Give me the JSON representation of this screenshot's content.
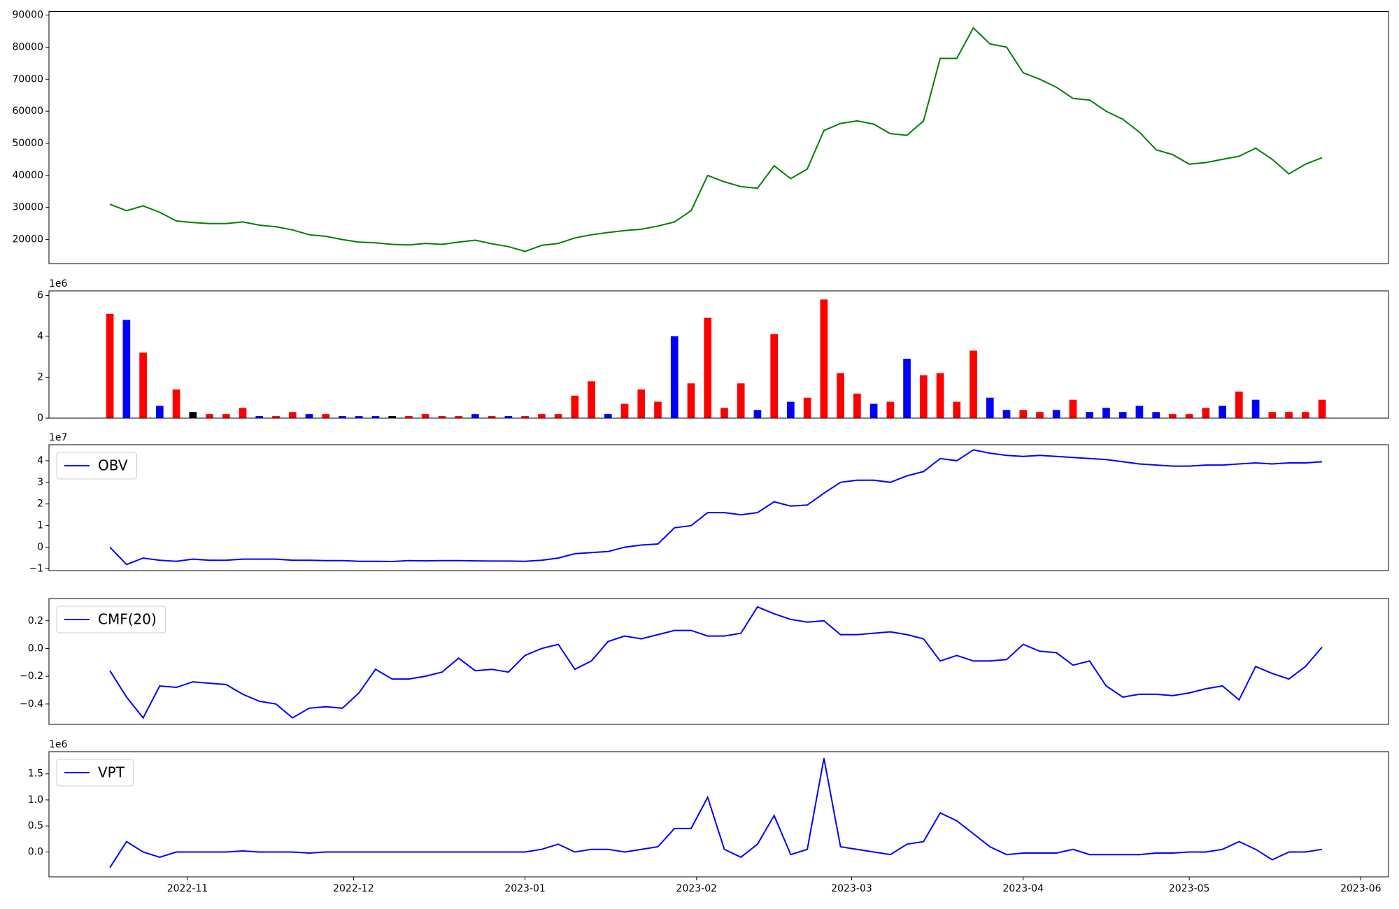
{
  "chart_data": [
    {
      "type": "line",
      "series": [
        {
          "color": "green",
          "values": [
            31000,
            29000,
            30500,
            28500,
            25800,
            25300,
            25000,
            25000,
            25500,
            24500,
            24000,
            23000,
            21500,
            21000,
            20000,
            19200,
            19000,
            18500,
            18300,
            18800,
            18500,
            19200,
            19800,
            18700,
            17800,
            16300,
            18200,
            18800,
            20500,
            21500,
            22200,
            22800,
            23200,
            24200,
            25500,
            29000,
            40000,
            38000,
            36500,
            36000,
            43000,
            39000,
            42000,
            54000,
            56200,
            57000,
            56000,
            53000,
            52500,
            57000,
            76500,
            76500,
            86000,
            81000,
            80000,
            72000,
            70000,
            67500,
            64000,
            63500,
            60000,
            57500,
            53500,
            48000,
            46500,
            43500,
            44000,
            45000,
            46000,
            48500,
            45000,
            40500,
            43500,
            45500
          ]
        }
      ],
      "ylim": [
        12500,
        91100
      ],
      "yticks": [
        20000,
        30000,
        40000,
        50000,
        60000,
        70000,
        80000,
        90000
      ]
    },
    {
      "type": "bar",
      "y_offset_label": "1e6",
      "values": [
        5.1,
        4.8,
        3.2,
        0.6,
        1.4,
        0.3,
        0.2,
        0.2,
        0.5,
        0.1,
        0.1,
        0.3,
        0.2,
        0.2,
        0.1,
        0.1,
        0.1,
        0.1,
        0.1,
        0.2,
        0.1,
        0.1,
        0.2,
        0.1,
        0.1,
        0.1,
        0.2,
        0.2,
        1.1,
        1.8,
        0.2,
        0.7,
        1.4,
        0.8,
        4.0,
        1.7,
        4.9,
        0.5,
        1.7,
        0.4,
        4.1,
        0.8,
        1.0,
        5.8,
        2.2,
        1.2,
        0.7,
        0.8,
        2.9,
        2.1,
        2.2,
        0.8,
        3.3,
        1.0,
        0.4,
        0.4,
        0.3,
        0.4,
        0.9,
        0.3,
        0.5,
        0.3,
        0.6,
        0.3,
        0.2,
        0.2,
        0.5,
        0.6,
        1.3,
        0.9,
        0.3,
        0.3,
        0.3,
        0.9
      ],
      "colors": [
        "red",
        "blue",
        "red",
        "blue",
        "red",
        "black",
        "red",
        "red",
        "red",
        "blue",
        "red",
        "red",
        "blue",
        "red",
        "blue",
        "blue",
        "blue",
        "black",
        "red",
        "red",
        "red",
        "red",
        "blue",
        "red",
        "blue",
        "red",
        "red",
        "red",
        "red",
        "red",
        "blue",
        "red",
        "red",
        "red",
        "blue",
        "red",
        "red",
        "red",
        "red",
        "blue",
        "red",
        "blue",
        "red",
        "red",
        "red",
        "red",
        "blue",
        "red",
        "blue",
        "red",
        "red",
        "red",
        "red",
        "blue",
        "blue",
        "red",
        "red",
        "blue",
        "red",
        "blue",
        "blue",
        "blue",
        "blue",
        "blue",
        "red",
        "red",
        "red",
        "blue",
        "red",
        "blue",
        "red",
        "red",
        "red",
        "red"
      ],
      "ylim": [
        0,
        6.22
      ],
      "yticks": [
        0,
        2,
        4,
        6
      ]
    },
    {
      "type": "line",
      "y_offset_label": "1e7",
      "legend": "upper left",
      "series": [
        {
          "name": "OBV",
          "color": "blue",
          "values": [
            0,
            -0.8,
            -0.5,
            -0.6,
            -0.65,
            -0.55,
            -0.6,
            -0.6,
            -0.55,
            -0.55,
            -0.55,
            -0.6,
            -0.6,
            -0.62,
            -0.62,
            -0.65,
            -0.65,
            -0.66,
            -0.62,
            -0.63,
            -0.62,
            -0.62,
            -0.63,
            -0.64,
            -0.64,
            -0.65,
            -0.6,
            -0.5,
            -0.3,
            -0.25,
            -0.2,
            0.0,
            0.1,
            0.15,
            0.9,
            1.0,
            1.6,
            1.6,
            1.5,
            1.6,
            2.1,
            1.9,
            1.95,
            2.5,
            3.0,
            3.1,
            3.1,
            3.0,
            3.3,
            3.5,
            4.1,
            4.0,
            4.5,
            4.35,
            4.25,
            4.2,
            4.25,
            4.2,
            4.15,
            4.1,
            4.05,
            3.95,
            3.85,
            3.8,
            3.75,
            3.75,
            3.8,
            3.8,
            3.85,
            3.9,
            3.85,
            3.9,
            3.9,
            3.95
          ]
        }
      ],
      "ylim": [
        -1.08,
        4.74
      ],
      "yticks": [
        {
          "value": -1,
          "label": "−1"
        },
        0,
        1,
        2,
        3,
        4
      ]
    },
    {
      "type": "line",
      "legend": "upper left",
      "series": [
        {
          "name": "CMF(20)",
          "color": "blue",
          "values": [
            -0.16,
            -0.35,
            -0.5,
            -0.27,
            -0.28,
            -0.24,
            -0.25,
            -0.26,
            -0.33,
            -0.38,
            -0.4,
            -0.5,
            -0.43,
            -0.42,
            -0.43,
            -0.32,
            -0.15,
            -0.22,
            -0.22,
            -0.2,
            -0.17,
            -0.07,
            -0.16,
            -0.15,
            -0.17,
            -0.05,
            0.0,
            0.03,
            -0.15,
            -0.09,
            0.05,
            0.09,
            0.07,
            0.1,
            0.13,
            0.13,
            0.09,
            0.09,
            0.11,
            0.3,
            0.25,
            0.21,
            0.19,
            0.2,
            0.1,
            0.1,
            0.11,
            0.12,
            0.1,
            0.07,
            -0.09,
            -0.05,
            -0.09,
            -0.09,
            -0.08,
            0.03,
            -0.02,
            -0.03,
            -0.12,
            -0.09,
            -0.27,
            -0.35,
            -0.33,
            -0.33,
            -0.34,
            -0.32,
            -0.29,
            -0.27,
            -0.37,
            -0.13,
            -0.18,
            -0.22,
            -0.13,
            0.01
          ]
        }
      ],
      "ylim": [
        -0.547,
        0.36
      ],
      "yticks": [
        {
          "value": -0.4,
          "label": "−0.4"
        },
        {
          "value": -0.2,
          "label": "−0.2"
        },
        {
          "value": 0,
          "label": "0.0"
        },
        0.2
      ]
    },
    {
      "type": "line",
      "y_offset_label": "1e6",
      "legend": "upper left",
      "series": [
        {
          "name": "VPT",
          "color": "blue",
          "values": [
            -0.3,
            0.2,
            0.0,
            -0.1,
            0.0,
            0.0,
            0.0,
            0.0,
            0.02,
            0.0,
            0.0,
            0.0,
            -0.02,
            0.0,
            0.0,
            0.0,
            0.0,
            0.0,
            0.0,
            0.0,
            0.0,
            0.0,
            0.0,
            0.0,
            0.0,
            0.0,
            0.05,
            0.15,
            0.0,
            0.05,
            0.05,
            0.0,
            0.05,
            0.1,
            0.45,
            0.45,
            1.05,
            0.05,
            -0.1,
            0.15,
            0.7,
            -0.05,
            0.05,
            1.8,
            0.1,
            0.05,
            0.0,
            -0.05,
            0.15,
            0.2,
            0.75,
            0.6,
            0.35,
            0.1,
            -0.05,
            -0.02,
            -0.02,
            -0.02,
            0.05,
            -0.05,
            -0.05,
            -0.05,
            -0.05,
            -0.02,
            -0.02,
            0.0,
            0.0,
            0.05,
            0.2,
            0.05,
            -0.15,
            0.0,
            0.0,
            0.05
          ]
        }
      ],
      "ylim": [
        -0.477,
        1.926
      ],
      "yticks": [
        {
          "value": 0,
          "label": "0.0"
        },
        0.5,
        {
          "value": 1,
          "label": "1.0"
        },
        1.5
      ],
      "xlim": [
        -3.67,
        77
      ],
      "xticks": [
        {
          "value": 4.67,
          "label": "2022-11"
        },
        {
          "value": 14.67,
          "label": "2022-12"
        },
        {
          "value": 25,
          "label": "2023-01"
        },
        {
          "value": 35.33,
          "label": "2023-02"
        },
        {
          "value": 44.67,
          "label": "2023-03"
        },
        {
          "value": 55,
          "label": "2023-04"
        },
        {
          "value": 65,
          "label": "2023-05"
        },
        {
          "value": 75.33,
          "label": "2023-06"
        }
      ]
    }
  ]
}
